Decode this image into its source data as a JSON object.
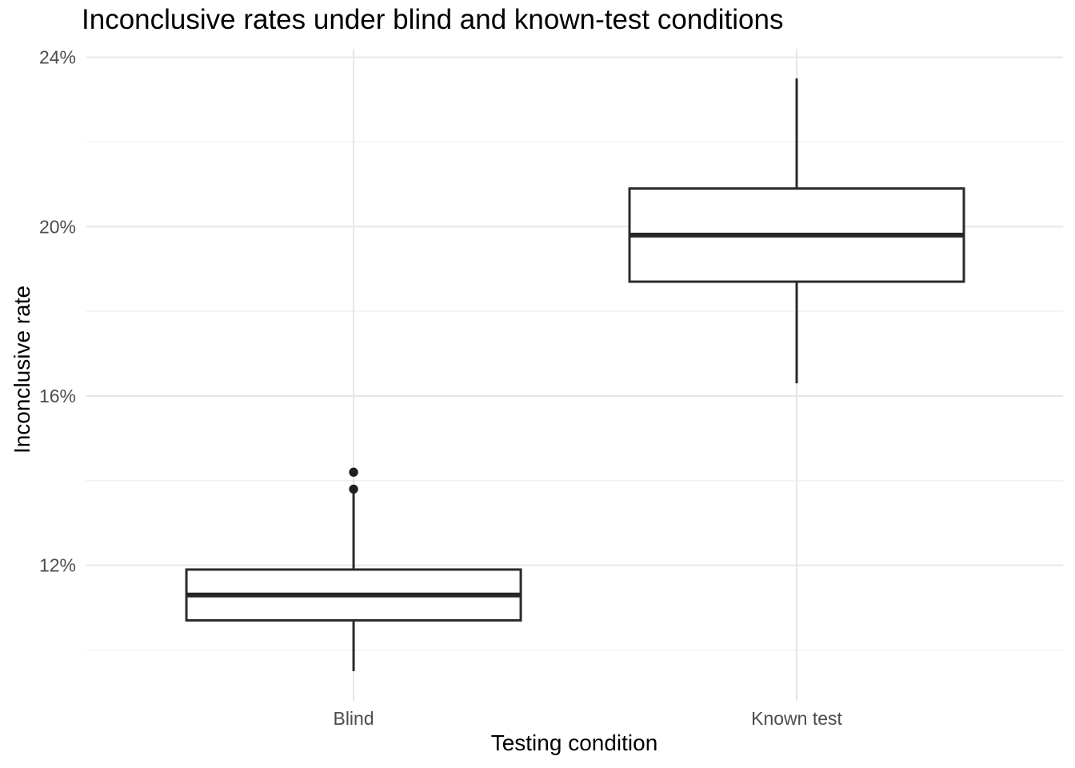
{
  "chart_data": {
    "type": "boxplot",
    "title": "Inconclusive rates under blind and known-test conditions",
    "xlabel": "Testing condition",
    "ylabel": "Inconclusive rate",
    "categories": [
      "Blind",
      "Known test"
    ],
    "ylim": [
      8.8,
      24.2
    ],
    "y_major_ticks": [
      12,
      16,
      20,
      24
    ],
    "y_major_tick_labels": [
      "12%",
      "16%",
      "20%",
      "24%"
    ],
    "y_minor_ticks": [
      10,
      14,
      18,
      22
    ],
    "grid": {
      "horizontal_major": true,
      "horizontal_minor": true,
      "vertical_major_at_categories": true,
      "vertical_minor": false
    },
    "legend": "none",
    "series": [
      {
        "name": "Blind",
        "whisker_low": 9.5,
        "q1": 10.7,
        "median": 11.3,
        "q3": 11.9,
        "whisker_high": 13.7,
        "outliers": [
          13.8,
          14.2
        ]
      },
      {
        "name": "Known test",
        "whisker_low": 16.3,
        "q1": 18.7,
        "median": 19.8,
        "q3": 20.9,
        "whisker_high": 23.5,
        "outliers": []
      }
    ]
  },
  "colors": {
    "background": "#ffffff",
    "grid_major": "#e6e6e6",
    "grid_minor": "#f1f1f1",
    "box_stroke": "#2b2b2b",
    "box_fill": "#ffffff",
    "median_stroke": "#262626",
    "outlier_fill": "#1f1f1f",
    "tick_label": "#4d4d4d",
    "title_text": "#000000",
    "axis_title_text": "#000000"
  }
}
